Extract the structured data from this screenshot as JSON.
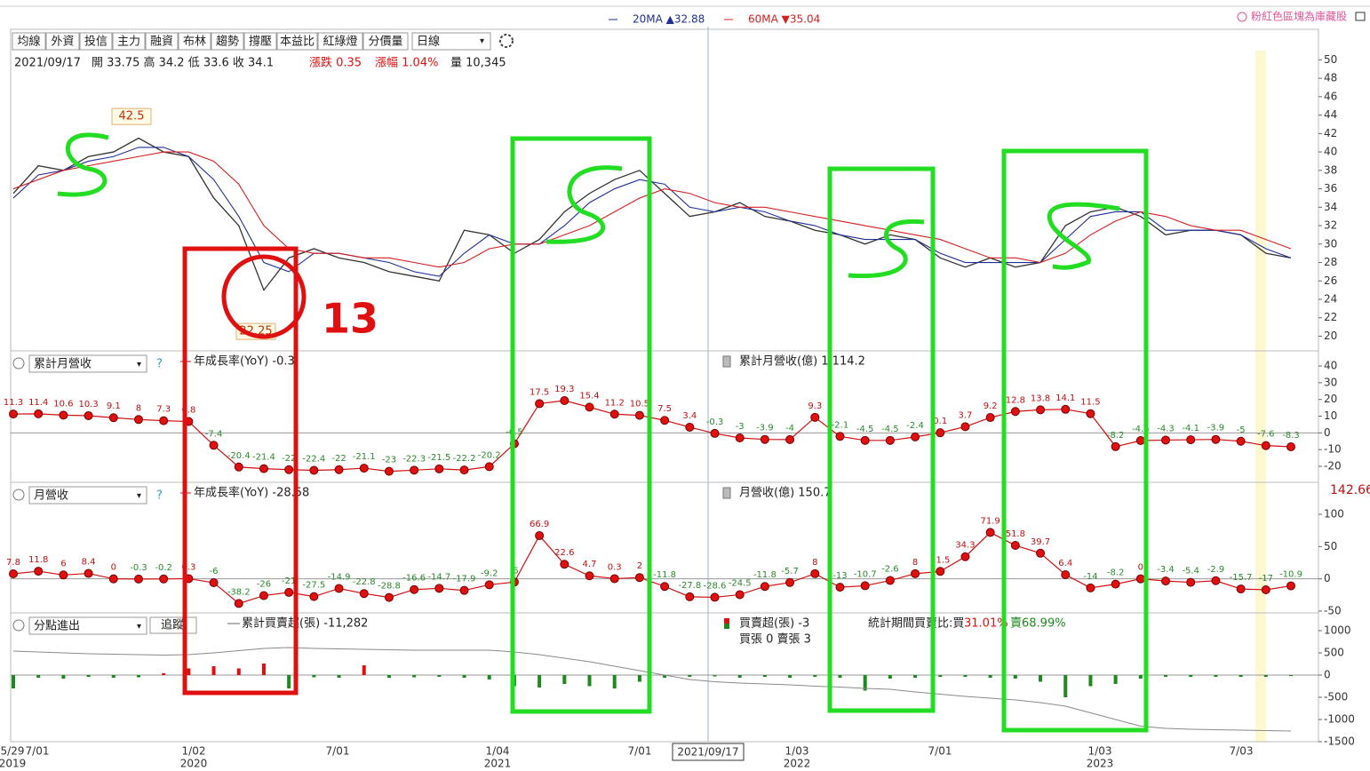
{
  "top_note": "粉紅色區塊為庫藏股",
  "toolbar": {
    "buttons": [
      "均線",
      "外資",
      "投信",
      "主力",
      "融資",
      "布林",
      "趨勢",
      "撐壓",
      "本益比",
      "紅綠燈",
      "分價量"
    ],
    "period": "日線"
  },
  "info": {
    "date": "2021/09/17",
    "ohlc": "開 33.75 高 34.2 低 33.6 收 34.1",
    "change": "漲跌 0.35",
    "pct": "漲幅 1.04%",
    "volume": "量 10,345"
  },
  "panel_selects": [
    "累計月營收",
    "月營收",
    "分點進出"
  ],
  "help": "?",
  "track_button": "追蹤",
  "side_value": "142.66",
  "x_axis": {
    "dates": [
      "5/29",
      "7/01",
      "1/02",
      "7/01",
      "1/04",
      "7/01",
      "1/03",
      "7/01",
      "1/03",
      "7/03"
    ],
    "years": [
      "2019",
      "2020",
      "2021",
      "2022",
      "2023"
    ],
    "cursor": "2021/09/17"
  },
  "hand_annotation": "13",
  "chart_data": [
    {
      "type": "line",
      "ylim": [
        18.6,
        51
      ],
      "yticks": [
        20,
        22,
        24,
        26,
        28,
        30,
        32,
        34,
        36,
        38,
        40,
        42,
        44,
        46,
        48,
        50
      ],
      "annotations": [
        42.5,
        22.25
      ],
      "series": [
        {
          "color": "#333333",
          "values": [
            35.5,
            38.5,
            38,
            39.5,
            40,
            41.5,
            40,
            39.5,
            35,
            32,
            25,
            28.5,
            29.5,
            28.5,
            28,
            27,
            26.5,
            26,
            31.5,
            31,
            29,
            30.5,
            33.5,
            35.5,
            37,
            38,
            35.5,
            33,
            33.5,
            34.5,
            33,
            32.5,
            31.5,
            31,
            30,
            31,
            30.5,
            28.5,
            27.5,
            28.5,
            27.5,
            28,
            32,
            33.5,
            34,
            33,
            31,
            31.5,
            31.5,
            31,
            29,
            28.5
          ]
        },
        {
          "name": "20MA ▲32.88",
          "color": "#1f2f9a",
          "values": [
            35,
            37.5,
            38,
            39,
            39.5,
            40.5,
            40.5,
            39.5,
            37,
            33,
            28,
            27,
            29,
            29,
            28.5,
            28,
            27,
            26.5,
            29,
            31,
            30,
            30,
            32,
            34.5,
            36,
            37,
            36.5,
            34,
            33.5,
            34,
            33.5,
            32.5,
            32,
            31,
            30.5,
            30.5,
            30.5,
            29,
            28,
            28,
            28,
            28,
            30.5,
            33,
            33.5,
            33.5,
            31.5,
            31.5,
            31.5,
            31,
            29.5,
            28.5
          ]
        },
        {
          "name": "60MA ▼35.04",
          "color": "#d42020",
          "values": [
            36,
            37,
            38,
            38.5,
            39,
            39.5,
            40,
            40,
            39,
            36.5,
            32,
            29.5,
            29,
            29,
            28.5,
            28.5,
            28,
            27.5,
            28,
            29.5,
            30,
            30,
            31,
            32,
            33.5,
            35,
            36,
            35.5,
            34.5,
            34,
            34,
            33.5,
            33,
            32.5,
            32,
            31.5,
            31,
            30.5,
            29.5,
            28.5,
            28.5,
            28,
            29,
            31,
            32.5,
            33.5,
            33,
            32,
            31.5,
            31.5,
            30.5,
            29.5
          ]
        }
      ]
    },
    {
      "type": "dots",
      "ylim": [
        -28.5,
        48
      ],
      "yticks": [
        40,
        30,
        20,
        10,
        0,
        -10,
        -20
      ],
      "bar_legend": "累計月營收(億) 1,114.2",
      "series": [
        {
          "name": "年成長率(YoY) -0.3",
          "color": "#d01010",
          "values": [
            11.3,
            11.4,
            10.6,
            10.3,
            9.1,
            8,
            7.3,
            6.8,
            -7.4,
            -20.4,
            -21.4,
            -22,
            -22.4,
            -22,
            -21.1,
            -23,
            -22.3,
            -21.5,
            -22.2,
            -20.2,
            -6.5,
            17.5,
            19.3,
            15.4,
            11.2,
            10.5,
            7.5,
            3.4,
            -0.3,
            -3,
            -3.9,
            -4,
            9.3,
            -2.1,
            -4.5,
            -4.5,
            -2.4,
            0.1,
            3.7,
            9.2,
            12.8,
            13.8,
            14.1,
            11.5,
            -8.2,
            -4.6,
            -4.3,
            -4.1,
            -3.9,
            -5,
            -7.6,
            -8.3
          ]
        }
      ]
    },
    {
      "type": "dots",
      "ylim": [
        -51.4,
        146.8
      ],
      "yticks": [
        100,
        50,
        0,
        -50
      ],
      "bar_legend": "月營收(億) 150.7",
      "series": [
        {
          "name": "年成長率(YoY) -28.58",
          "color": "#d01010",
          "values": [
            7.8,
            11.8,
            6,
            8.4,
            0,
            -0.3,
            -0.2,
            0.3,
            -6,
            -38.2,
            -26,
            -21,
            -27.5,
            -14.9,
            -22.8,
            -28.8,
            -16.6,
            -14.7,
            -17.9,
            -9.2,
            -5,
            66.9,
            22.6,
            4.7,
            0.3,
            2,
            -11.8,
            -27.8,
            -28.6,
            -24.5,
            -11.8,
            -5.7,
            8,
            -13,
            -10.7,
            -2.6,
            8,
            11.5,
            34.3,
            71.9,
            51.8,
            39.7,
            6.4,
            -14,
            -8.2,
            0,
            -3.4,
            -5.4,
            -2.9,
            -15.7,
            -17,
            -10.9
          ]
        }
      ]
    },
    {
      "type": "flow",
      "ylim": [
        -1500,
        1360
      ],
      "yticks": [
        1000,
        500,
        0,
        -500,
        -1000,
        -1500
      ],
      "detail": "買張 0 賣張 3",
      "stats": "統計期間買賣比:買",
      "buy_pct": "31.01%",
      "sell_pct": "賣68.99%",
      "series": [
        {
          "name": "累計買賣超(張) -11,282",
          "color": "#8a8a8a",
          "values": [
            540,
            520,
            500,
            480,
            470,
            460,
            450,
            460,
            500,
            550,
            600,
            620,
            600,
            590,
            580,
            570,
            560,
            560,
            560,
            560,
            520,
            460,
            380,
            300,
            200,
            100,
            0,
            -100,
            -150,
            -180,
            -200,
            -220,
            -250,
            -270,
            -300,
            -320,
            -380,
            -430,
            -480,
            -520,
            -560,
            -620,
            -700,
            -850,
            -1000,
            -1150,
            -1200,
            -1220,
            -1230,
            -1240,
            -1250,
            -1260
          ]
        },
        {
          "name": "買賣超(張) -3",
          "color": "#d01010",
          "values": [
            -300,
            -60,
            -80,
            -40,
            -60,
            -50,
            40,
            150,
            200,
            150,
            260,
            -300,
            -50,
            -60,
            220,
            -60,
            -50,
            -40,
            -60,
            -100,
            -250,
            -280,
            -200,
            -250,
            -300,
            -150,
            -60,
            -40,
            -30,
            -60,
            -40,
            -60,
            -40,
            -60,
            -350,
            -80,
            -60,
            -40,
            -40,
            -60,
            -80,
            -150,
            -500,
            -250,
            -200,
            -80,
            -40,
            -40,
            -40,
            -40,
            -40,
            -20
          ]
        }
      ]
    }
  ]
}
